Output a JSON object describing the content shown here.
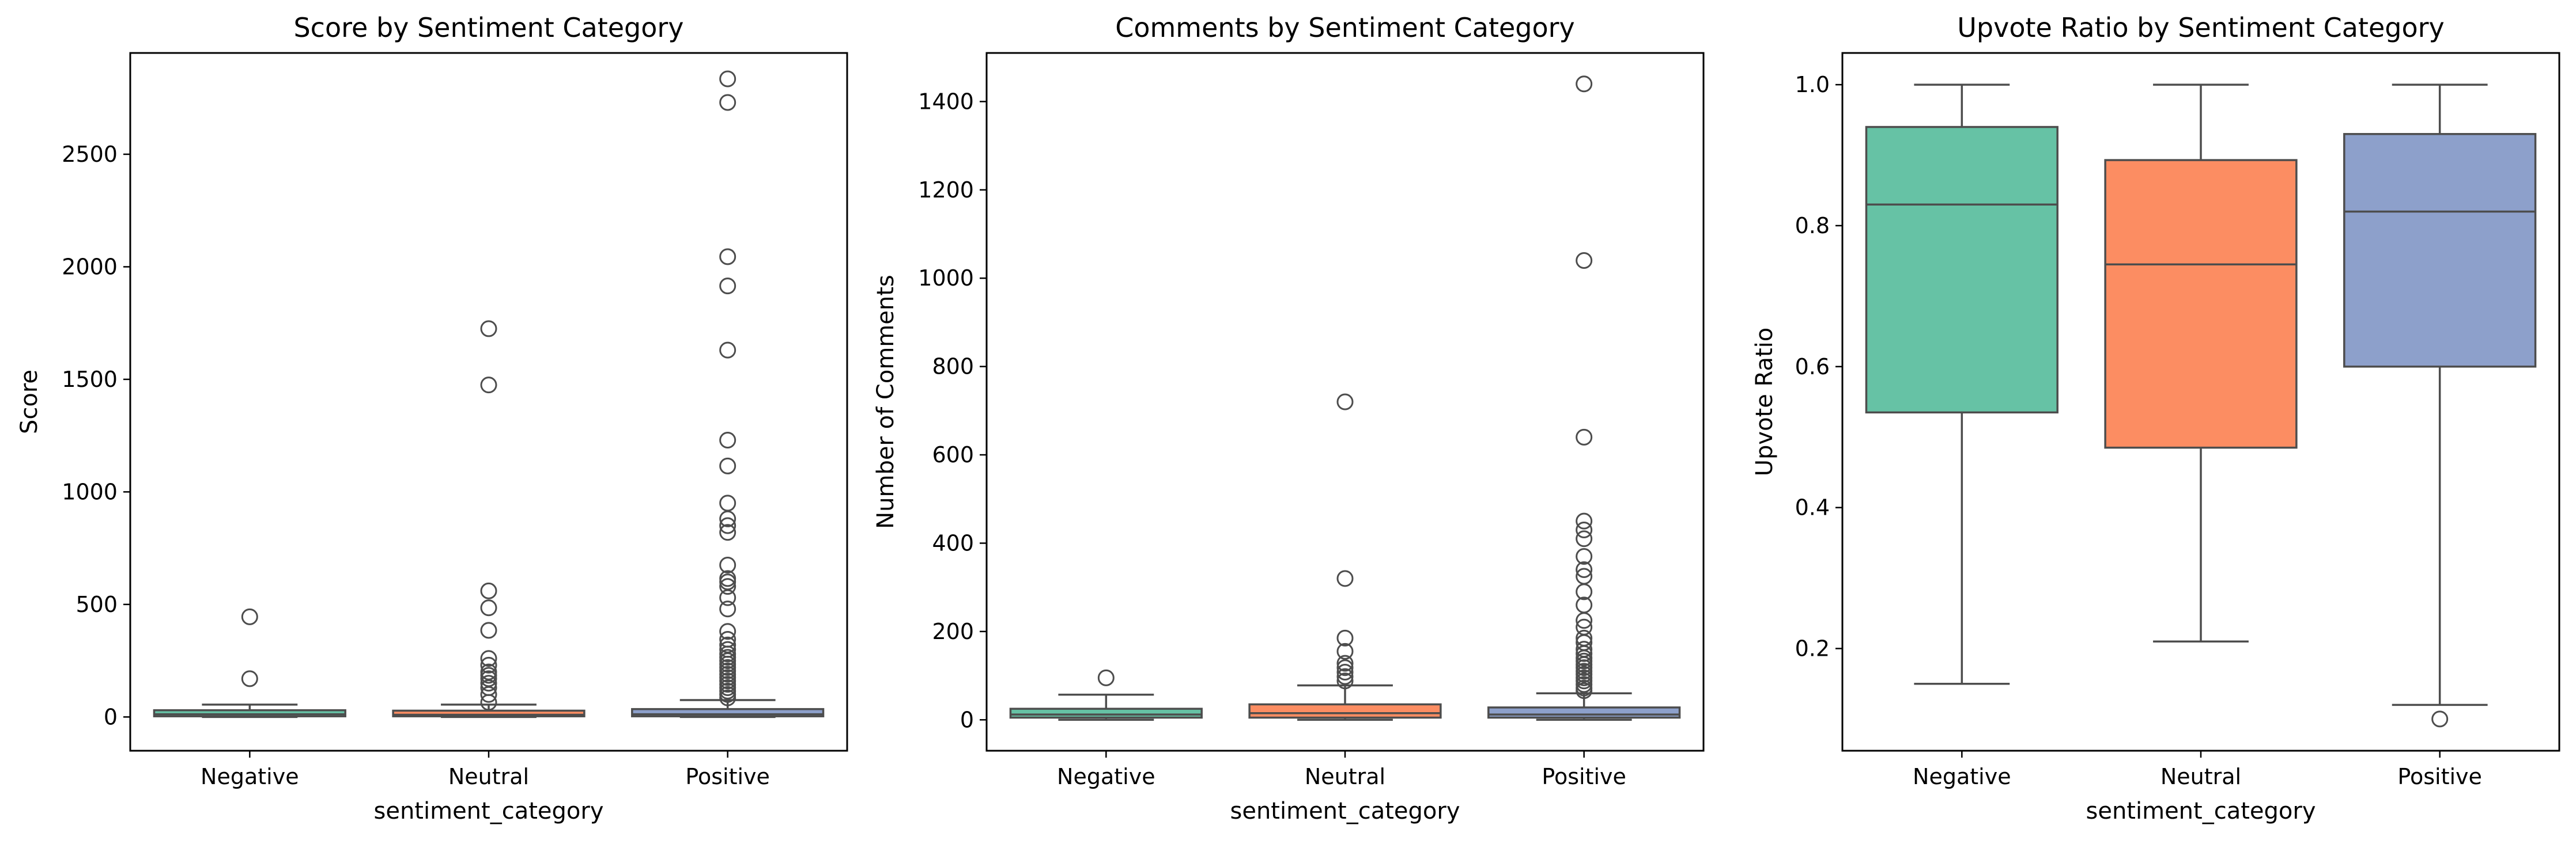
{
  "chart_data": [
    {
      "type": "box",
      "title": "Score by Sentiment Category",
      "xlabel": "sentiment_category",
      "ylabel": "Score",
      "categories": [
        "Negative",
        "Neutral",
        "Positive"
      ],
      "ylim": [
        -150,
        2950
      ],
      "yticks": [
        0,
        500,
        1000,
        1500,
        2000,
        2500
      ],
      "boxes": [
        {
          "category": "Negative",
          "q1": 3,
          "median": 12,
          "q3": 30,
          "whisker_low": 0,
          "whisker_high": 55,
          "fliers": [
            170,
            445
          ],
          "color": "#66c2a5"
        },
        {
          "category": "Neutral",
          "q1": 3,
          "median": 10,
          "q3": 28,
          "whisker_low": 0,
          "whisker_high": 55,
          "fliers": [
            65,
            100,
            130,
            150,
            170,
            185,
            200,
            230,
            260,
            385,
            485,
            560,
            1475,
            1725
          ],
          "color": "#fc8d62"
        },
        {
          "category": "Positive",
          "q1": 3,
          "median": 12,
          "q3": 35,
          "whisker_low": 0,
          "whisker_high": 75,
          "fliers": [
            85,
            100,
            115,
            130,
            145,
            160,
            175,
            190,
            205,
            220,
            235,
            250,
            265,
            280,
            300,
            320,
            345,
            380,
            480,
            530,
            580,
            600,
            615,
            675,
            820,
            850,
            880,
            950,
            1115,
            1230,
            1630,
            1915,
            2045,
            2730,
            2835
          ],
          "color": "#8da0cb"
        }
      ]
    },
    {
      "type": "box",
      "title": "Comments by Sentiment Category",
      "xlabel": "sentiment_category",
      "ylabel": "Number of Comments",
      "categories": [
        "Negative",
        "Neutral",
        "Positive"
      ],
      "ylim": [
        -70,
        1510
      ],
      "yticks": [
        0,
        200,
        400,
        600,
        800,
        1000,
        1200,
        1400
      ],
      "boxes": [
        {
          "category": "Negative",
          "q1": 5,
          "median": 12,
          "q3": 25,
          "whisker_low": 0,
          "whisker_high": 57,
          "fliers": [
            95
          ],
          "color": "#66c2a5"
        },
        {
          "category": "Neutral",
          "q1": 5,
          "median": 15,
          "q3": 35,
          "whisker_low": 0,
          "whisker_high": 78,
          "fliers": [
            88,
            98,
            108,
            118,
            128,
            155,
            185,
            320,
            720
          ],
          "color": "#fc8d62"
        },
        {
          "category": "Positive",
          "q1": 5,
          "median": 12,
          "q3": 28,
          "whisker_low": 0,
          "whisker_high": 60,
          "fliers": [
            66,
            72,
            80,
            88,
            95,
            103,
            110,
            118,
            125,
            133,
            140,
            150,
            160,
            175,
            185,
            210,
            225,
            260,
            290,
            325,
            340,
            370,
            410,
            430,
            450,
            640,
            1040,
            1440
          ],
          "color": "#8da0cb"
        }
      ]
    },
    {
      "type": "box",
      "title": "Upvote Ratio by Sentiment Category",
      "xlabel": "sentiment_category",
      "ylabel": "Upvote Ratio",
      "categories": [
        "Negative",
        "Neutral",
        "Positive"
      ],
      "ylim": [
        0.055,
        1.045
      ],
      "yticks": [
        0.2,
        0.4,
        0.6,
        0.8,
        1.0
      ],
      "ytick_labels": [
        "0.2",
        "0.4",
        "0.6",
        "0.8",
        "1.0"
      ],
      "boxes": [
        {
          "category": "Negative",
          "q1": 0.535,
          "median": 0.83,
          "q3": 0.94,
          "whisker_low": 0.15,
          "whisker_high": 1.0,
          "fliers": [],
          "color": "#66c2a5"
        },
        {
          "category": "Neutral",
          "q1": 0.485,
          "median": 0.745,
          "q3": 0.893,
          "whisker_low": 0.21,
          "whisker_high": 1.0,
          "fliers": [],
          "color": "#fc8d62"
        },
        {
          "category": "Positive",
          "q1": 0.6,
          "median": 0.82,
          "q3": 0.93,
          "whisker_low": 0.12,
          "whisker_high": 1.0,
          "fliers": [
            0.1
          ],
          "color": "#8da0cb"
        }
      ]
    }
  ]
}
